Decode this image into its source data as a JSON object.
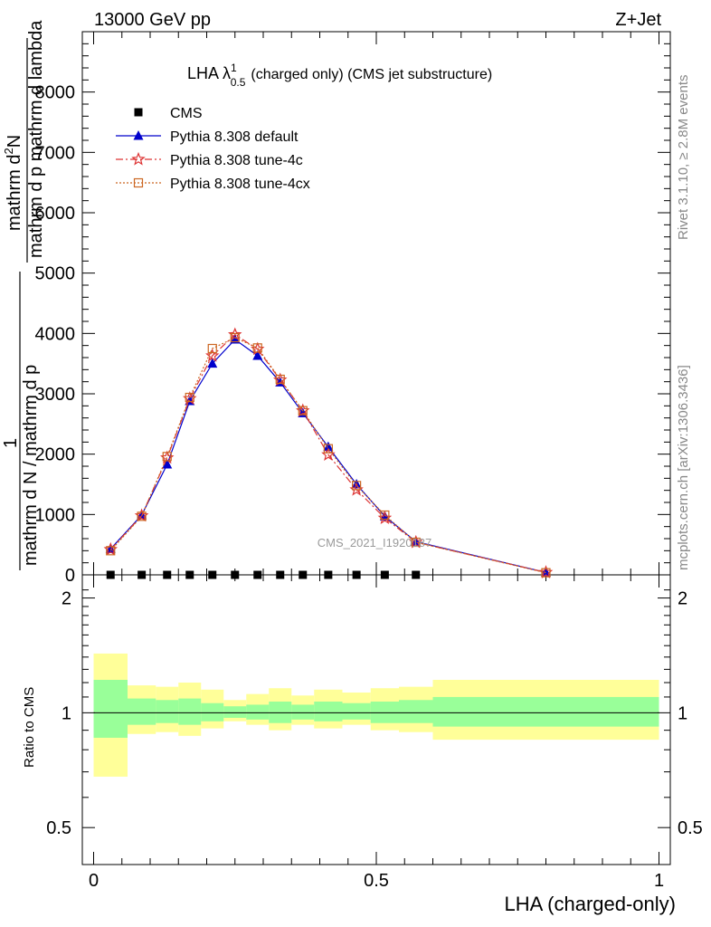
{
  "header": {
    "left": "13000 GeV pp",
    "right": "Z+Jet"
  },
  "side_labels": {
    "rivet": "Rivet 3.1.10, ≥ 2.8M events",
    "mcplots": "mcplots.cern.ch [arXiv:1306.3436]"
  },
  "watermark": "CMS_2021_I1920187",
  "chart_data": [
    {
      "type": "line",
      "title": "LHA λ",
      "title_sup": "1",
      "title_sub": "0.5",
      "title_suffix": "(charged only) (CMS jet substructure)",
      "ylabel": {
        "numerator_lower": "1",
        "denominator_lower": "mathrm d N / mathrm d p",
        "numerator_upper": "mathrm d",
        "numerator_upper_sup": "2",
        "numerator_upper_end": "N",
        "denominator_upper": "mathrm d p mathrm d lambda"
      },
      "ylabel_lines": [
        "mathrm d",
        "2",
        "N",
        "mathrm d p",
        "mathrm d lambda",
        "1",
        "mathrm d N / mathrm d p"
      ],
      "ylim": [
        0,
        9000
      ],
      "yticks": [
        0,
        1000,
        2000,
        3000,
        4000,
        5000,
        6000,
        7000,
        8000
      ],
      "ytick_labels": [
        "0",
        "1000",
        "2000",
        "3000",
        "4000",
        "5000",
        "6000",
        "7000",
        "8000"
      ],
      "xlim": [
        -0.02,
        1.02
      ],
      "legend_position": "top-left",
      "series": [
        {
          "name": "CMS",
          "color": "#000000",
          "marker": "square",
          "x": [
            0.03,
            0.085,
            0.13,
            0.17,
            0.21,
            0.25,
            0.29,
            0.33,
            0.37,
            0.415,
            0.465,
            0.515,
            0.57
          ],
          "values": [
            0,
            0,
            0,
            0,
            0,
            0,
            0,
            0,
            0,
            0,
            0,
            0,
            0
          ]
        },
        {
          "name": "Pythia 8.308 default",
          "color": "#0000cc",
          "marker": "triangle",
          "dash": "",
          "x": [
            0.03,
            0.085,
            0.13,
            0.17,
            0.21,
            0.25,
            0.29,
            0.33,
            0.37,
            0.415,
            0.465,
            0.515,
            0.57,
            0.8
          ],
          "values": [
            430,
            990,
            1830,
            2880,
            3500,
            3900,
            3630,
            3190,
            2680,
            2120,
            1500,
            970,
            550,
            40
          ]
        },
        {
          "name": "Pythia 8.308 tune-4c",
          "color": "#dd3333",
          "marker": "star",
          "dash": "8,3,2,3",
          "x": [
            0.03,
            0.085,
            0.13,
            0.17,
            0.21,
            0.25,
            0.29,
            0.33,
            0.37,
            0.415,
            0.465,
            0.515,
            0.57,
            0.8
          ],
          "values": [
            420,
            980,
            1940,
            2920,
            3630,
            3980,
            3740,
            3230,
            2720,
            1990,
            1410,
            940,
            540,
            40
          ]
        },
        {
          "name": "Pythia 8.308 tune-4cx",
          "color": "#cc6622",
          "marker": "open-square",
          "dash": "2,2",
          "x": [
            0.03,
            0.085,
            0.13,
            0.17,
            0.21,
            0.25,
            0.29,
            0.33,
            0.37,
            0.415,
            0.465,
            0.515,
            0.57,
            0.8
          ],
          "values": [
            400,
            970,
            1960,
            2940,
            3750,
            3930,
            3760,
            3240,
            2720,
            2090,
            1480,
            990,
            540,
            35
          ]
        }
      ]
    },
    {
      "type": "area",
      "ylabel": "Ratio to CMS",
      "xlabel": "LHA (charged-only)",
      "ylim": [
        0.4,
        2.3
      ],
      "yticks": [
        0.5,
        1,
        2
      ],
      "ytick_labels": [
        "0.5",
        "1",
        "2"
      ],
      "xlim": [
        -0.02,
        1.02
      ],
      "xticks": [
        0,
        0.5,
        1
      ],
      "xtick_labels": [
        "0",
        "0.5",
        "1"
      ],
      "colors": {
        "inner_band": "#99ff99",
        "outer_band": "#ffff99",
        "reference": "#000000"
      },
      "bins": [
        {
          "lo": 0.0,
          "hi": 0.06,
          "inner": [
            0.86,
            1.22
          ],
          "outer": [
            0.68,
            1.43
          ]
        },
        {
          "lo": 0.06,
          "hi": 0.11,
          "inner": [
            0.93,
            1.09
          ],
          "outer": [
            0.88,
            1.18
          ]
        },
        {
          "lo": 0.11,
          "hi": 0.15,
          "inner": [
            0.94,
            1.08
          ],
          "outer": [
            0.89,
            1.17
          ]
        },
        {
          "lo": 0.15,
          "hi": 0.19,
          "inner": [
            0.93,
            1.09
          ],
          "outer": [
            0.87,
            1.2
          ]
        },
        {
          "lo": 0.19,
          "hi": 0.23,
          "inner": [
            0.95,
            1.06
          ],
          "outer": [
            0.91,
            1.15
          ]
        },
        {
          "lo": 0.23,
          "hi": 0.27,
          "inner": [
            0.97,
            1.04
          ],
          "outer": [
            0.95,
            1.08
          ]
        },
        {
          "lo": 0.27,
          "hi": 0.31,
          "inner": [
            0.96,
            1.05
          ],
          "outer": [
            0.93,
            1.12
          ]
        },
        {
          "lo": 0.31,
          "hi": 0.35,
          "inner": [
            0.94,
            1.07
          ],
          "outer": [
            0.9,
            1.16
          ]
        },
        {
          "lo": 0.35,
          "hi": 0.39,
          "inner": [
            0.96,
            1.05
          ],
          "outer": [
            0.93,
            1.11
          ]
        },
        {
          "lo": 0.39,
          "hi": 0.44,
          "inner": [
            0.95,
            1.07
          ],
          "outer": [
            0.91,
            1.15
          ]
        },
        {
          "lo": 0.44,
          "hi": 0.49,
          "inner": [
            0.96,
            1.06
          ],
          "outer": [
            0.93,
            1.13
          ]
        },
        {
          "lo": 0.49,
          "hi": 0.54,
          "inner": [
            0.94,
            1.07
          ],
          "outer": [
            0.9,
            1.16
          ]
        },
        {
          "lo": 0.54,
          "hi": 0.6,
          "inner": [
            0.94,
            1.08
          ],
          "outer": [
            0.89,
            1.17
          ]
        },
        {
          "lo": 0.6,
          "hi": 1.0,
          "inner": [
            0.92,
            1.1
          ],
          "outer": [
            0.85,
            1.22
          ]
        }
      ]
    }
  ]
}
